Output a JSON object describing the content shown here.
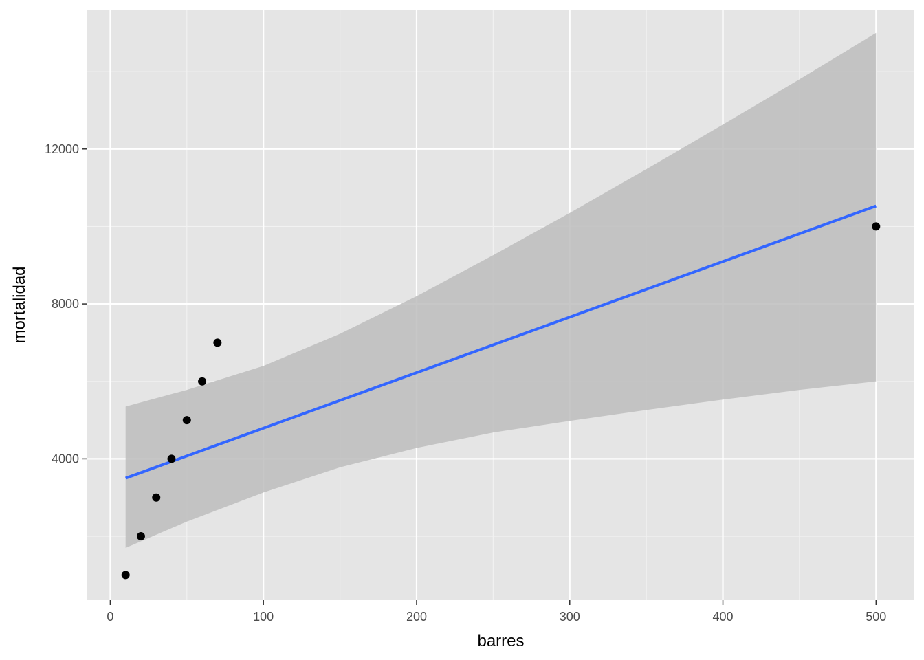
{
  "chart_data": {
    "type": "scatter",
    "xlabel": "barres",
    "ylabel": "mortalidad",
    "xlim": [
      -15,
      525
    ],
    "ylim": [
      350,
      15600
    ],
    "x_ticks": [
      0,
      100,
      200,
      300,
      400,
      500
    ],
    "x_tick_labels": [
      "0",
      "100",
      "200",
      "300",
      "400",
      "500"
    ],
    "x_minor_ticks": [
      50,
      150,
      250,
      350,
      450
    ],
    "y_ticks": [
      4000,
      8000,
      12000
    ],
    "y_tick_labels": [
      "4000",
      "8000",
      "12000"
    ],
    "y_minor_ticks": [
      2000,
      6000,
      10000,
      14000
    ],
    "grid": true,
    "points": {
      "x": [
        10,
        20,
        30,
        40,
        50,
        60,
        70,
        500
      ],
      "y": [
        1000,
        2000,
        3000,
        4000,
        5000,
        6000,
        7000,
        10000
      ]
    },
    "fit": {
      "method": "lm",
      "x": [
        10,
        500
      ],
      "y": [
        3500,
        10530
      ]
    },
    "confidence_band": {
      "x": [
        10,
        50,
        100,
        150,
        200,
        250,
        300,
        350,
        400,
        450,
        500
      ],
      "lower": [
        1700,
        2380,
        3130,
        3780,
        4280,
        4680,
        4980,
        5260,
        5530,
        5780,
        6000
      ],
      "upper": [
        5350,
        5780,
        6400,
        7230,
        8200,
        9260,
        10350,
        11480,
        12630,
        13800,
        15000
      ]
    },
    "colors": {
      "panel_background": "#e5e5e5",
      "grid_major": "#ffffff",
      "grid_minor": "#f2f2f2",
      "points": "#000000",
      "fit_line": "#3366ff",
      "band": "#bdbdbd",
      "tick_label": "#4d4d4d",
      "axis_title": "#000000"
    }
  }
}
